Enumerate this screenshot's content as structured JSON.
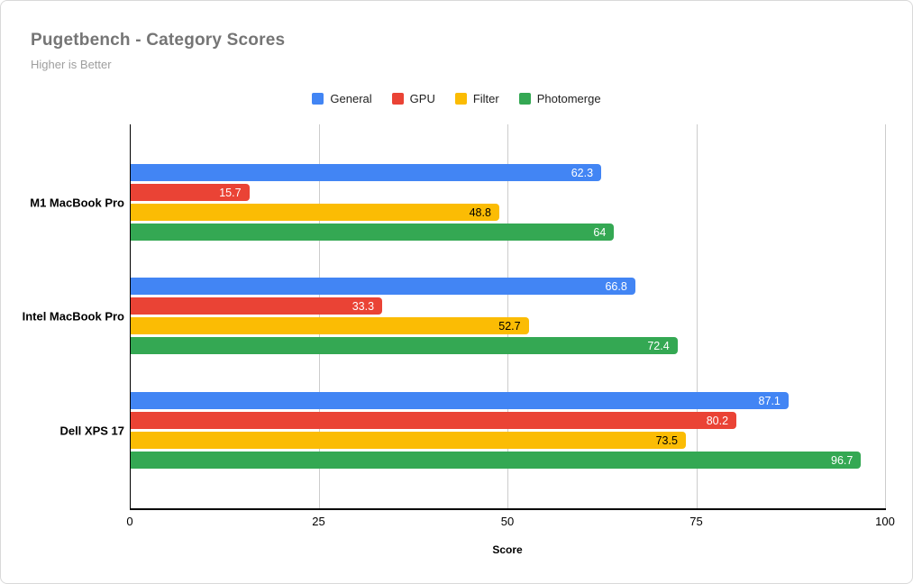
{
  "card": {
    "title": "Pugetbench - Category Scores",
    "subtitle": "Higher is Better"
  },
  "chart_data": {
    "type": "bar",
    "orientation": "horizontal",
    "title": "Pugetbench - Category Scores",
    "subtitle": "Higher is Better",
    "xlabel": "Score",
    "ylabel": "",
    "xlim": [
      0,
      100
    ],
    "x_ticks": [
      0,
      25,
      50,
      75,
      100
    ],
    "x_tick_labels": [
      "0",
      "25",
      "50",
      "75",
      "100"
    ],
    "grid": "vertical",
    "legend_position": "top-center",
    "categories": [
      "M1 MacBook Pro",
      "Intel MacBook Pro",
      "Dell XPS 17"
    ],
    "series": [
      {
        "name": "General",
        "color": "#4285F4",
        "label_color": "#ffffff",
        "values": [
          62.3,
          66.8,
          87.1
        ],
        "labels": [
          "62.3",
          "66.8",
          "87.1"
        ]
      },
      {
        "name": "GPU",
        "color": "#EA4335",
        "label_color": "#ffffff",
        "values": [
          15.7,
          33.3,
          80.2
        ],
        "labels": [
          "15.7",
          "33.3",
          "80.2"
        ]
      },
      {
        "name": "Filter",
        "color": "#FBBC04",
        "label_color": "#000000",
        "values": [
          48.8,
          52.7,
          73.5
        ],
        "labels": [
          "48.8",
          "52.7",
          "73.5"
        ]
      },
      {
        "name": "Photomerge",
        "color": "#34A853",
        "label_color": "#ffffff",
        "values": [
          64,
          72.4,
          96.7
        ],
        "labels": [
          "64",
          "72.4",
          "96.7"
        ]
      }
    ]
  }
}
